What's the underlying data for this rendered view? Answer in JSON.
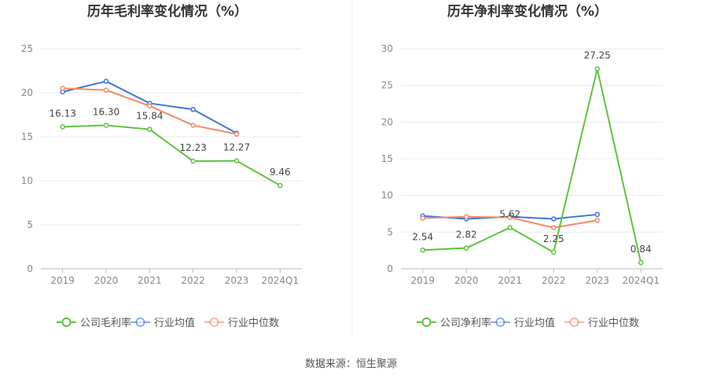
{
  "source_label": "数据来源：恒生聚源",
  "colors": {
    "company": "#5cc43c",
    "industry_avg": "#3d76dd",
    "industry_median": "#f08c64"
  },
  "chart_data": [
    {
      "type": "line",
      "title": "历年毛利率变化情况（%）",
      "categories": [
        "2019",
        "2020",
        "2021",
        "2022",
        "2023",
        "2024Q1"
      ],
      "yticks": [
        "0",
        "5",
        "10",
        "15",
        "20",
        "25"
      ],
      "ylim": [
        0,
        25
      ],
      "grid": true,
      "legend_position": "bottom",
      "series": [
        {
          "name": "公司毛利率",
          "key": "company",
          "values": [
            16.13,
            16.3,
            15.84,
            12.23,
            12.27,
            9.46
          ],
          "labels": [
            "16.13",
            "16.30",
            "15.84",
            "12.23",
            "12.27",
            "9.46"
          ]
        },
        {
          "name": "行业均值",
          "key": "industry_avg",
          "values": [
            20.1,
            21.3,
            18.8,
            18.1,
            15.4,
            null
          ]
        },
        {
          "name": "行业中位数",
          "key": "industry_median",
          "values": [
            20.5,
            20.3,
            18.5,
            16.3,
            15.3,
            null
          ]
        }
      ]
    },
    {
      "type": "line",
      "title": "历年净利率变化情况（%）",
      "categories": [
        "2019",
        "2020",
        "2021",
        "2022",
        "2023",
        "2024Q1"
      ],
      "yticks": [
        "0",
        "5",
        "10",
        "15",
        "20",
        "25",
        "30"
      ],
      "ylim": [
        0,
        30
      ],
      "grid": true,
      "legend_position": "bottom",
      "series": [
        {
          "name": "公司净利率",
          "key": "company",
          "values": [
            2.54,
            2.82,
            5.62,
            2.25,
            27.25,
            0.84
          ],
          "labels": [
            "2.54",
            "2.82",
            "5.62",
            "2.25",
            "27.25",
            "0.84"
          ]
        },
        {
          "name": "行业均值",
          "key": "industry_avg",
          "values": [
            7.2,
            6.8,
            7.1,
            6.8,
            7.4,
            null
          ]
        },
        {
          "name": "行业中位数",
          "key": "industry_median",
          "values": [
            6.9,
            7.1,
            7.0,
            5.6,
            6.6,
            null
          ]
        }
      ]
    }
  ]
}
